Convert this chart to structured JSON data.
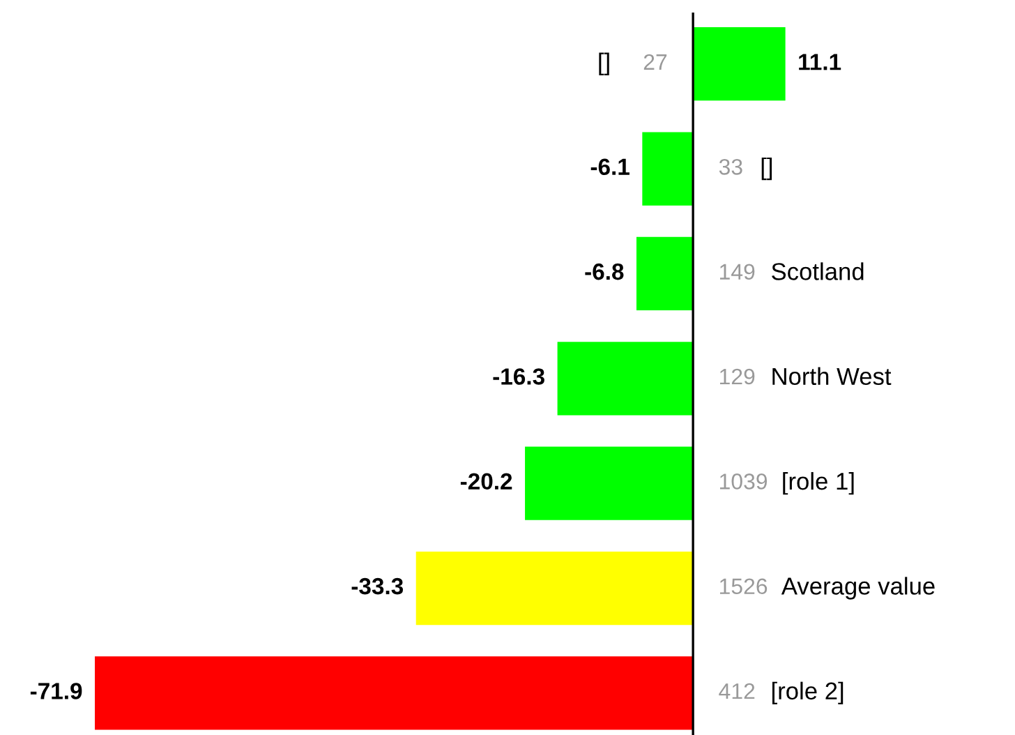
{
  "chart_data": {
    "type": "bar",
    "orientation": "horizontal",
    "data_labels": true,
    "categories": [
      "[]",
      "[]",
      "Scotland",
      "North West",
      "[role 1]",
      "Average value",
      "[role 2]"
    ],
    "values": [
      11.1,
      -6.1,
      -6.8,
      -16.3,
      -20.2,
      -33.3,
      -71.9
    ],
    "colors": [
      "#00ff00",
      "#00ff00",
      "#00ff00",
      "#00ff00",
      "#00ff00",
      "#ffff00",
      "#ff0000"
    ],
    "annotations": [
      "27",
      "33",
      "149",
      "129",
      "1039",
      "1526",
      "412"
    ],
    "xlim": [
      -83.3,
      38.7
    ]
  }
}
